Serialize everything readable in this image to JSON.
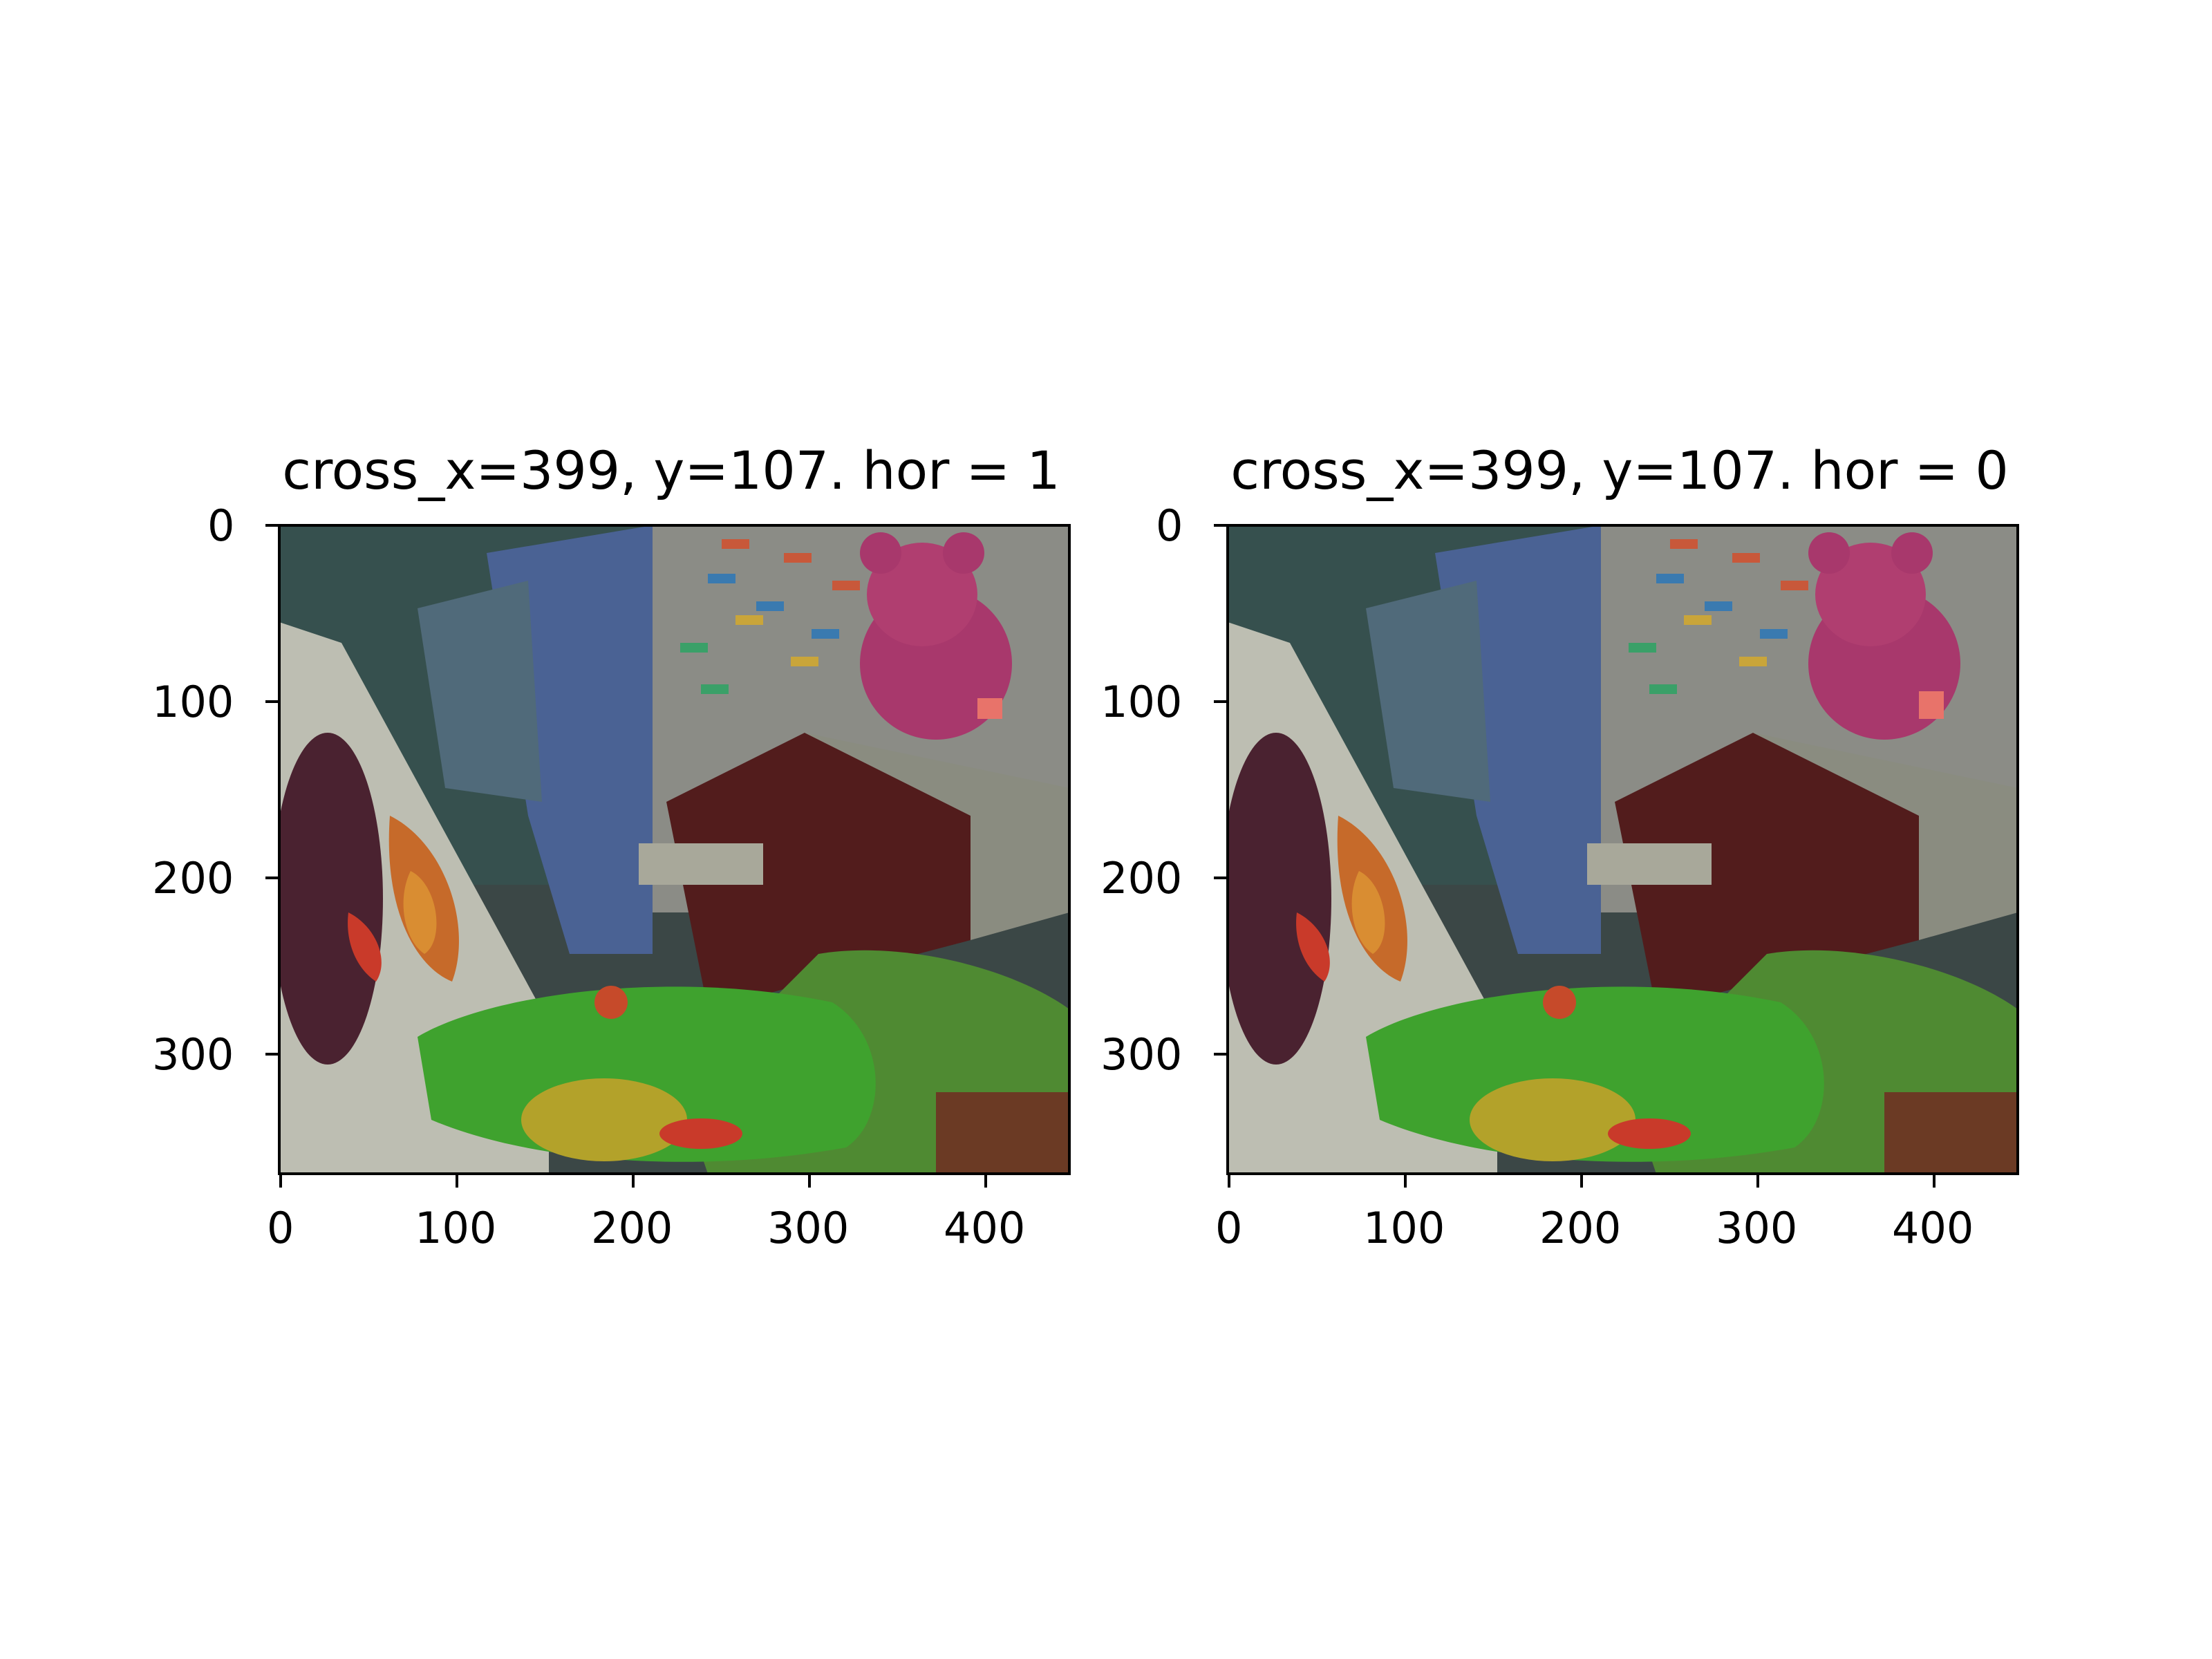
{
  "figure": {
    "panels": [
      {
        "title": "cross_x=399, y=107. hor = 1",
        "x_ticks": [
          "0",
          "100",
          "200",
          "300",
          "400"
        ],
        "y_ticks": [
          "0",
          "100",
          "200",
          "300"
        ],
        "marker": {
          "label": "cross",
          "x": 399,
          "y": 107
        }
      },
      {
        "title": "cross_x=399, y=107. hor = 0",
        "x_ticks": [
          "0",
          "100",
          "200",
          "300",
          "400"
        ],
        "y_ticks": [
          "0",
          "100",
          "200",
          "300"
        ],
        "marker": {
          "label": "cross",
          "x": 399,
          "y": 107
        }
      }
    ],
    "x_range": [
      0,
      448
    ],
    "y_range": [
      0,
      368
    ]
  },
  "colors": {
    "wall": "#3d4a4a",
    "blue_cloth": "#4a6294",
    "calendar": "#8b8c86",
    "teddy_bear": "#a8386c",
    "wooden_box": "#521c1c",
    "frog_toy": "#3fa22e",
    "plant": "#4f8a32",
    "eggplant": "#4a2230",
    "pepper_red": "#c93a2a",
    "marker": "#e8736a"
  }
}
